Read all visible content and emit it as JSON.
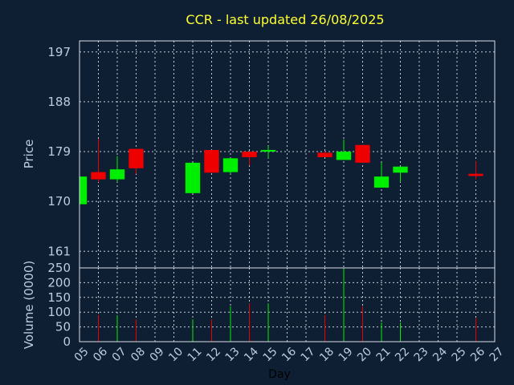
{
  "chart_data": {
    "type": "candlestick",
    "title": "CCR - last updated 26/08/2025",
    "xlabel": "Day",
    "price_ylabel": "Price",
    "volume_ylabel": "Volume (0000)",
    "x_ticks": [
      "05",
      "06",
      "07",
      "08",
      "09",
      "10",
      "11",
      "12",
      "13",
      "14",
      "15",
      "16",
      "17",
      "18",
      "19",
      "20",
      "21",
      "22",
      "23",
      "24",
      "25",
      "26",
      "27"
    ],
    "price_axis": {
      "ylim": [
        158,
        199
      ],
      "ticks": [
        197,
        188,
        179,
        170,
        161
      ]
    },
    "volume_axis": {
      "ylim": [
        0,
        250
      ],
      "ticks": [
        250,
        200,
        150,
        100,
        50,
        0
      ]
    },
    "grid": true,
    "colors": {
      "up": "#00ee00",
      "down": "#ee0000",
      "title": "#ffff33",
      "text": "#b9cde0",
      "background": "#0f1f33"
    },
    "candles": [
      {
        "day": 5,
        "open": 169.5,
        "close": 174.5,
        "high": 174.5,
        "low": 169.5,
        "volume": 0
      },
      {
        "day": 6,
        "open": 175.3,
        "close": 174.0,
        "high": 181.3,
        "low": 173.5,
        "volume": 90
      },
      {
        "day": 7,
        "open": 174.0,
        "close": 175.8,
        "high": 178.2,
        "low": 173.5,
        "volume": 90
      },
      {
        "day": 8,
        "open": 179.5,
        "close": 176.0,
        "high": 179.5,
        "low": 175.0,
        "volume": 75
      },
      {
        "day": 11,
        "open": 171.5,
        "close": 177.0,
        "high": 177.0,
        "low": 171.5,
        "volume": 75
      },
      {
        "day": 12,
        "open": 179.3,
        "close": 175.2,
        "high": 179.3,
        "low": 175.2,
        "volume": 75
      },
      {
        "day": 13,
        "open": 175.3,
        "close": 177.8,
        "high": 177.8,
        "low": 175.0,
        "volume": 120
      },
      {
        "day": 14,
        "open": 179.0,
        "close": 178.0,
        "high": 179.0,
        "low": 176.5,
        "volume": 130
      },
      {
        "day": 15,
        "open": 179.0,
        "close": 179.3,
        "high": 180.0,
        "low": 177.8,
        "volume": 130
      },
      {
        "day": 18,
        "open": 178.8,
        "close": 178.0,
        "high": 179.0,
        "low": 178.0,
        "volume": 90
      },
      {
        "day": 19,
        "open": 177.5,
        "close": 179.0,
        "high": 181.2,
        "low": 177.5,
        "volume": 250
      },
      {
        "day": 20,
        "open": 180.2,
        "close": 177.0,
        "high": 180.2,
        "low": 177.0,
        "volume": 120
      },
      {
        "day": 21,
        "open": 172.5,
        "close": 174.5,
        "high": 177.0,
        "low": 172.5,
        "volume": 65
      },
      {
        "day": 22,
        "open": 175.2,
        "close": 176.3,
        "high": 176.3,
        "low": 173.5,
        "volume": 65
      },
      {
        "day": 26,
        "open": 175.0,
        "close": 174.6,
        "high": 177.3,
        "low": 174.0,
        "volume": 80
      }
    ]
  }
}
